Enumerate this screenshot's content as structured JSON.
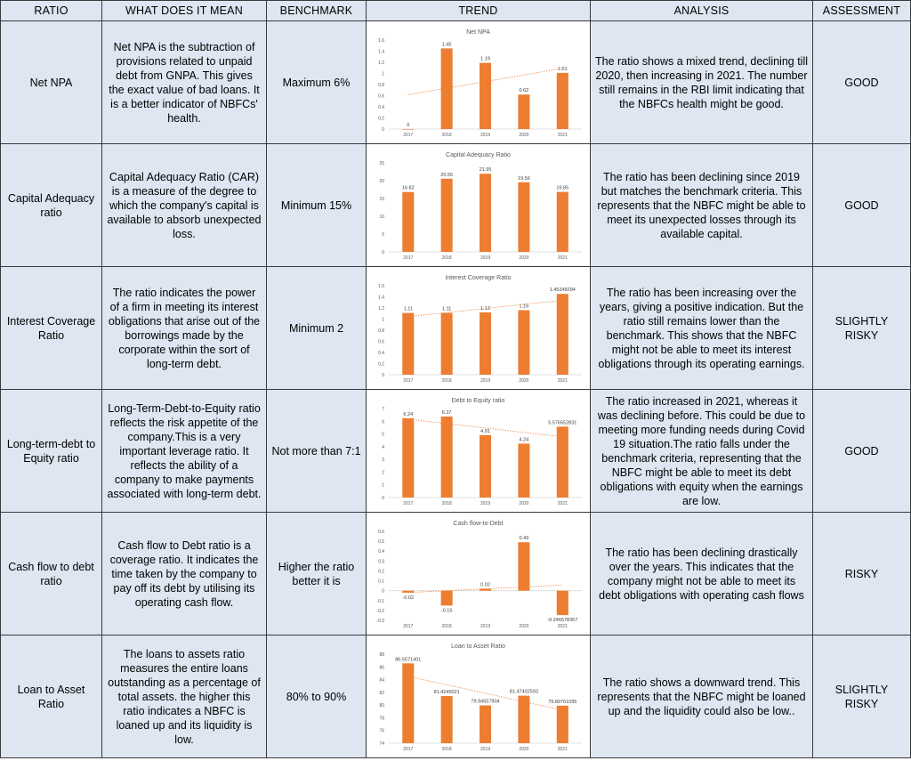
{
  "headers": {
    "ratio": "RATIO",
    "meaning": "WHAT DOES IT MEAN",
    "benchmark": "BENCHMARK",
    "trend": "TREND",
    "analysis": "ANALYSIS",
    "assessment": "ASSESSMENT"
  },
  "rows": [
    {
      "ratio": "Net NPA",
      "meaning": "Net NPA is the subtraction of provisions related to unpaid debt from GNPA. This gives the exact value of bad loans. It is a better indicator of NBFCs' health.",
      "benchmark": "Maximum 6%",
      "analysis": "The ratio shows a mixed trend, declining till 2020, then increasing in 2021. The number still remains in the RBI limit indicating that the NBFCs health might be good.",
      "assessment": "GOOD"
    },
    {
      "ratio": "Capital Adequacy ratio",
      "meaning": "Capital Adequacy Ratio (CAR) is a measure of the degree to which the company's capital is available to absorb unexpected loss.",
      "benchmark": "Minimum 15%",
      "analysis": "The ratio has been declining since 2019 but matches the benchmark criteria. This represents that the NBFC might be able to meet its unexpected losses through its available capital.",
      "assessment": "GOOD"
    },
    {
      "ratio": "Interest Coverage Ratio",
      "meaning": "The ratio indicates the power of a firm in meeting its interest obligations that arise out of the borrowings made by the corporate within the sort of long-term debt.",
      "benchmark": "Minimum 2",
      "analysis": "The ratio has been increasing over the years, giving a positive indication. But the ratio still remains lower than the benchmark. This shows that the NBFC might not be able to meet its interest obligations through its operating earnings.",
      "assessment": "SLIGHTLY RISKY"
    },
    {
      "ratio": "Long-term-debt to Equity ratio",
      "meaning": "Long-Term-Debt-to-Equity ratio reflects the risk appetite of the company.This is a very important leverage ratio. It reflects the ability of a company to make payments associated with long-term debt.",
      "benchmark": "Not more than 7:1",
      "analysis": "The ratio increased in 2021, whereas it was declining before. This could be due to meeting more funding needs during Covid 19 situation.The ratio falls under the benchmark criteria, representing that the NBFC might be able to meet its debt obligations with equity when the earnings are low.",
      "assessment": "GOOD"
    },
    {
      "ratio": "Cash flow to debt ratio",
      "meaning": "Cash flow to Debt ratio is a coverage ratio. It indicates the time taken by the company to pay off its debt by utilising its operating cash flow.",
      "benchmark": "Higher the ratio better it is",
      "analysis": "The ratio has been declining drastically over the years. This indicates that the company might not be able to meet its debt obligations with operating cash flows",
      "assessment": "RISKY"
    },
    {
      "ratio": "Loan to Asset Ratio",
      "meaning": "The loans to assets ratio measures the entire loans outstanding as a percentage of total assets. the higher this ratio indicates a NBFC is loaned up and its liquidity is low.",
      "benchmark": "80% to 90%",
      "analysis": "The ratio shows a downward trend. This represents that the NBFC might be loaned up and the liquidity could also be low..",
      "assessment": "SLIGHTLY RISKY"
    }
  ],
  "chart_data": [
    {
      "type": "bar",
      "title": "Net NPA",
      "categories": [
        "2017",
        "2018",
        "2019",
        "2020",
        "2021"
      ],
      "values": [
        0,
        1.45,
        1.19,
        0.62,
        1.01
      ],
      "value_labels": [
        "0",
        "1.45",
        "1.19",
        "0.62",
        "1.01"
      ],
      "ylim": [
        0,
        1.6
      ],
      "yticks": [
        0,
        0.2,
        0.4,
        0.6,
        0.8,
        1,
        1.2,
        1.4,
        1.6
      ],
      "ytick_labels": [
        "0",
        "0.2",
        "0.4",
        "0.6",
        "0.8",
        "1",
        "1.2",
        "1.4",
        "1.6"
      ],
      "trendline": true,
      "trend_up": true,
      "bar_color": "#ed7d31"
    },
    {
      "type": "bar",
      "title": "Capital Adequacy Ratio",
      "categories": [
        "2017",
        "2018",
        "2019",
        "2020",
        "2021"
      ],
      "values": [
        16.82,
        20.55,
        21.95,
        19.56,
        16.85
      ],
      "value_labels": [
        "16.82",
        "20.55",
        "21.95",
        "19.56",
        "16.85"
      ],
      "ylim": [
        0,
        25
      ],
      "yticks": [
        0,
        5,
        10,
        15,
        20,
        25
      ],
      "ytick_labels": [
        "0",
        "5",
        "10",
        "15",
        "20",
        "25"
      ],
      "trendline": false,
      "bar_color": "#ed7d31"
    },
    {
      "type": "bar",
      "title": "Interest Coverage Ratio",
      "categories": [
        "2017",
        "2018",
        "2019",
        "2020",
        "2021"
      ],
      "values": [
        1.11,
        1.11,
        1.12,
        1.16,
        1.45248294
      ],
      "value_labels": [
        "1.11",
        "1.11",
        "1.12",
        "1.16",
        "1.45248294"
      ],
      "ylim": [
        0,
        1.6
      ],
      "yticks": [
        0,
        0.2,
        0.4,
        0.6,
        0.8,
        1,
        1.2,
        1.4,
        1.6
      ],
      "ytick_labels": [
        "0",
        "0.2",
        "0.4",
        "0.6",
        "0.8",
        "1",
        "1.2",
        "1.4",
        "1.6"
      ],
      "trendline": true,
      "trend_up": true,
      "bar_color": "#ed7d31"
    },
    {
      "type": "bar",
      "title": "Debt to Equity ratio",
      "categories": [
        "2017",
        "2018",
        "2019",
        "2020",
        "2021"
      ],
      "values": [
        6.24,
        6.37,
        4.91,
        4.24,
        5.576552831
      ],
      "value_labels": [
        "6.24",
        "6.37",
        "4.91",
        "4.24",
        "5.576552831"
      ],
      "ylim": [
        0,
        7
      ],
      "yticks": [
        0,
        1,
        2,
        3,
        4,
        5,
        6,
        7
      ],
      "ytick_labels": [
        "0",
        "1",
        "2",
        "3",
        "4",
        "5",
        "6",
        "7"
      ],
      "trendline": true,
      "trend_up": false,
      "bar_color": "#ed7d31"
    },
    {
      "type": "bar",
      "title": "Cash flow-to-Debt",
      "categories": [
        "2017",
        "2018",
        "2019",
        "2020",
        "2021"
      ],
      "values": [
        -0.02,
        -0.15,
        0.02,
        0.49,
        -0.246578367
      ],
      "value_labels": [
        "-0.02",
        "-0.15",
        "0.02",
        "0.49",
        "-0.246578367"
      ],
      "ylim": [
        -0.3,
        0.6
      ],
      "yticks": [
        -0.3,
        -0.2,
        -0.1,
        0,
        0.1,
        0.2,
        0.3,
        0.4,
        0.5,
        0.6
      ],
      "ytick_labels": [
        "-0.3",
        "-0.2",
        "-0.1",
        "0",
        "0.1",
        "0.2",
        "0.3",
        "0.4",
        "0.5",
        "0.6"
      ],
      "trendline": true,
      "trend_up": true,
      "bar_color": "#ed7d31"
    },
    {
      "type": "bar",
      "title": "Loan to Asset Ratio",
      "categories": [
        "2017",
        "2018",
        "2019",
        "2020",
        "2021"
      ],
      "values": [
        86.5571401,
        81.4245021,
        79.94557904,
        81.47402593,
        79.89761095
      ],
      "value_labels": [
        "86.5571401",
        "81.4245021",
        "79.94557904",
        "81.47402593",
        "79.89761095"
      ],
      "ylim": [
        74,
        88
      ],
      "yticks": [
        74,
        76,
        78,
        80,
        82,
        84,
        86,
        88
      ],
      "ytick_labels": [
        "74",
        "76",
        "78",
        "80",
        "82",
        "84",
        "86",
        "88"
      ],
      "trendline": true,
      "trend_up": false,
      "bar_color": "#ed7d31"
    }
  ]
}
